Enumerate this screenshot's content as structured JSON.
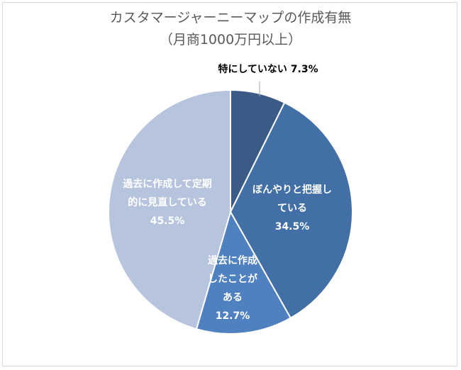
{
  "chart_data": {
    "type": "pie",
    "title": "カスタマージャーニーマップの作成有無",
    "subtitle": "（月商1000万円以上）",
    "slices": [
      {
        "label_lines": [
          "特にしていない 7.3%"
        ],
        "value": 7.3,
        "color": "#3c5a86",
        "label_color": "#000000"
      },
      {
        "label_lines": [
          "ぼんやりと把握し",
          "ている",
          "34.5%"
        ],
        "value": 34.5,
        "color": "#416fa6",
        "label_color": "#ffffff"
      },
      {
        "label_lines": [
          "過去に作成",
          "したことが",
          "ある",
          "12.7%"
        ],
        "value": 12.7,
        "color": "#4f80bf",
        "label_color": "#ffffff"
      },
      {
        "label_lines": [
          "過去に作成して定期",
          "的に見直している",
          "45.5%"
        ],
        "value": 45.5,
        "color": "#b7c4de",
        "label_color": "#ffffff"
      }
    ],
    "start_angle": "12 o'clock",
    "direction": "clockwise",
    "legend": "none"
  }
}
